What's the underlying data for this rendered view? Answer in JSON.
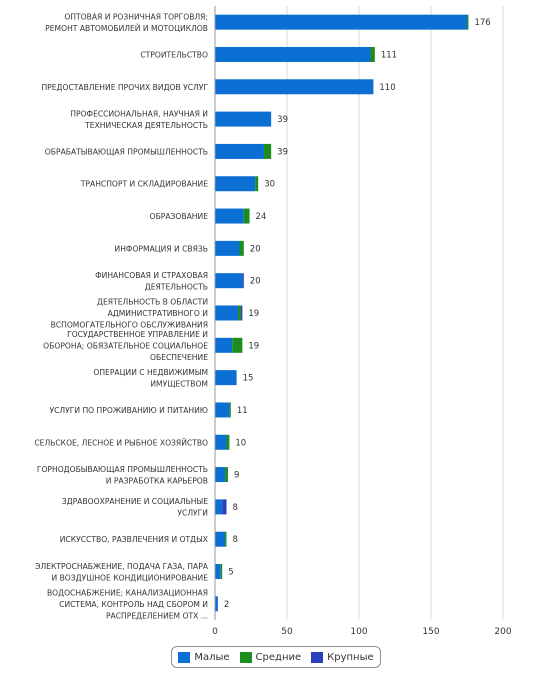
{
  "chart_data": {
    "type": "bar",
    "orientation": "horizontal",
    "stacked": true,
    "categories": [
      [
        "ОПТОВАЯ И РОЗНИЧНАЯ ТОРГОВЛЯ;",
        "РЕМОНТ АВТОМОБИЛЕЙ И МОТОЦИКЛОВ"
      ],
      [
        "СТРОИТЕЛЬСТВО"
      ],
      [
        "ПРЕДОСТАВЛЕНИЕ ПРОЧИХ ВИДОВ УСЛУГ"
      ],
      [
        "ПРОФЕССИОНАЛЬНАЯ, НАУЧНАЯ И",
        "ТЕХНИЧЕСКАЯ ДЕЯТЕЛЬНОСТЬ"
      ],
      [
        "ОБРАБАТЫВАЮЩАЯ ПРОМЫШЛЕННОСТЬ"
      ],
      [
        "ТРАНСПОРТ И СКЛАДИРОВАНИЕ"
      ],
      [
        "ОБРАЗОВАНИЕ"
      ],
      [
        "ИНФОРМАЦИЯ И СВЯЗЬ"
      ],
      [
        "ФИНАНСОВАЯ И СТРАХОВАЯ",
        "ДЕЯТЕЛЬНОСТЬ"
      ],
      [
        "ДЕЯТЕЛЬНОСТЬ В ОБЛАСТИ",
        "АДМИНИСТРАТИВНОГО И",
        "ВСПОМОГАТЕЛЬНОГО ОБСЛУЖИВАНИЯ"
      ],
      [
        "ГОСУДАРСТВЕННОЕ УПРАВЛЕНИЕ И",
        "ОБОРОНА; ОБЯЗАТЕЛЬНОЕ СОЦИАЛЬНОЕ",
        "ОБЕСПЕЧЕНИЕ"
      ],
      [
        "ОПЕРАЦИИ С НЕДВИЖИМЫМ",
        "ИМУЩЕСТВОМ"
      ],
      [
        "УСЛУГИ ПО ПРОЖИВАНИЮ И ПИТАНИЮ"
      ],
      [
        "СЕЛЬСКОЕ, ЛЕСНОЕ И РЫБНОЕ ХОЗЯЙСТВО"
      ],
      [
        "ГОРНОДОБЫВАЮЩАЯ ПРОМЫШЛЕННОСТЬ",
        "И РАЗРАБОТКА КАРЬЕРОВ"
      ],
      [
        "ЗДРАВООХРАНЕНИЕ И СОЦИАЛЬНЫЕ",
        "УСЛУГИ"
      ],
      [
        "ИСКУССТВО, РАЗВЛЕЧЕНИЯ И ОТДЫХ"
      ],
      [
        "ЭЛЕКТРОСНАБЖЕНИЕ, ПОДАЧА ГАЗА, ПАРА",
        "И ВОЗДУШНОЕ КОНДИЦИОНИРОВАНИЕ"
      ],
      [
        "ВОДОСНАБЖЕНИЕ; КАНАЛИЗАЦИОННАЯ",
        "СИСТЕМА, КОНТРОЛЬ НАД СБОРОМ И",
        "РАСПРЕДЕЛЕНИЕМ ОТХ ..."
      ]
    ],
    "series": [
      {
        "name": "Малые",
        "color": "#0b6fd4",
        "values": [
          175,
          108,
          110,
          39,
          34,
          28,
          20,
          17,
          19,
          16,
          12,
          15,
          10,
          8,
          7,
          5,
          7,
          4,
          2
        ]
      },
      {
        "name": "Средние",
        "color": "#1e8c1e",
        "values": [
          1,
          3,
          0,
          0,
          5,
          2,
          4,
          3,
          0,
          2,
          7,
          0,
          1,
          2,
          2,
          0,
          1,
          1,
          0
        ]
      },
      {
        "name": "Крупные",
        "color": "#2a3fbf",
        "values": [
          0,
          0,
          0,
          0,
          0,
          0,
          0,
          0,
          1,
          1,
          0,
          0,
          0,
          0,
          0,
          3,
          0,
          0,
          0
        ]
      }
    ],
    "totals": [
      "176",
      "111",
      "110",
      "39",
      "39",
      "30",
      "24",
      "20",
      "20",
      "19",
      "19",
      "15",
      "11",
      "10",
      "9",
      "8",
      "8",
      "5",
      "2"
    ],
    "x_ticks": [
      "0",
      "50",
      "100",
      "150",
      "200"
    ],
    "xlim": [
      0,
      200
    ],
    "grid": true,
    "legend_position": "bottom"
  }
}
